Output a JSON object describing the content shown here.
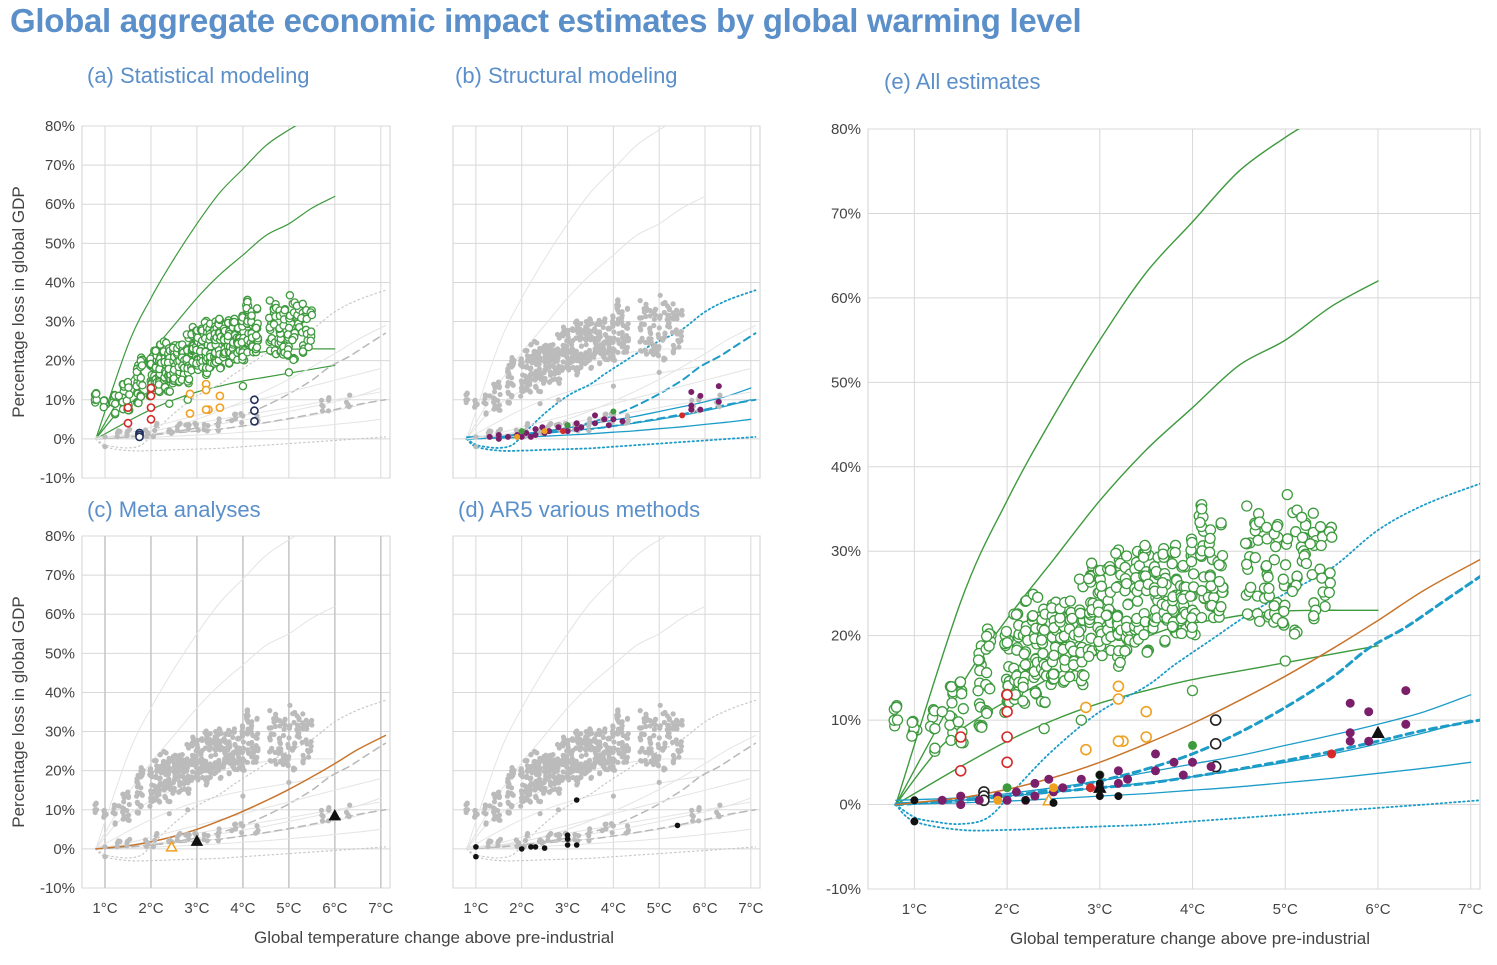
{
  "title": "Global aggregate economic impact estimates by global warming level",
  "chart_data": [
    {
      "panel": "a",
      "type": "scatter",
      "title": "(a) Statistical modeling",
      "ylabel": "Percentage loss in global GDP",
      "ylim": [
        -10,
        80
      ],
      "xlim": [
        0.5,
        7.2
      ],
      "y_ticks": [
        "-10%",
        "0%",
        "10%",
        "20%",
        "30%",
        "40%",
        "50%",
        "60%",
        "70%",
        "80%"
      ],
      "highlight": "statistical",
      "grid": true
    },
    {
      "panel": "b",
      "type": "scatter",
      "title": "(b) Structural modeling",
      "ylim": [
        -10,
        80
      ],
      "xlim": [
        0.5,
        7.2
      ],
      "highlight": "structural",
      "grid": true
    },
    {
      "panel": "c",
      "type": "scatter",
      "title": "(c) Meta analyses",
      "ylabel": "Percentage loss in global GDP",
      "ylim": [
        -10,
        80
      ],
      "xlim": [
        0.5,
        7.2
      ],
      "y_ticks": [
        "-10%",
        "0%",
        "10%",
        "20%",
        "30%",
        "40%",
        "50%",
        "60%",
        "70%",
        "80%"
      ],
      "x_ticks": [
        "1°C",
        "2°C",
        "3°C",
        "4°C",
        "5°C",
        "6°C",
        "7°C"
      ],
      "highlight": "meta",
      "grid": true
    },
    {
      "panel": "d",
      "type": "scatter",
      "title": "(d) AR5 various methods",
      "ylim": [
        -10,
        80
      ],
      "xlim": [
        0.5,
        7.2
      ],
      "x_ticks": [
        "1°C",
        "2°C",
        "3°C",
        "4°C",
        "5°C",
        "6°C",
        "7°C"
      ],
      "highlight": "ar5",
      "grid": true
    },
    {
      "panel": "e",
      "type": "scatter",
      "title": "(e) All estimates",
      "ylim": [
        -10,
        80
      ],
      "xlim": [
        0.5,
        7.1
      ],
      "y_ticks": [
        "-10%",
        "0%",
        "10%",
        "20%",
        "30%",
        "40%",
        "50%",
        "60%",
        "70%",
        "80%"
      ],
      "x_ticks": [
        "1°C",
        "2°C",
        "3°C",
        "4°C",
        "5°C",
        "6°C",
        "7°C"
      ],
      "highlight": "all",
      "grid": true
    }
  ],
  "xlabel": "Global temperature change above pre-industrial",
  "curves": {
    "statistical": [
      {
        "x": [
          0.8,
          1.5,
          2,
          2.5,
          3,
          3.5,
          4,
          4.5,
          5,
          5.3
        ],
        "y": [
          0,
          24,
          36,
          46,
          55,
          63,
          69,
          75,
          79,
          81
        ]
      },
      {
        "x": [
          0.8,
          1.5,
          2,
          2.5,
          3,
          3.5,
          4,
          4.5,
          5,
          5.5,
          6
        ],
        "y": [
          0,
          14,
          22,
          29,
          36,
          42,
          47,
          52,
          55,
          59,
          62
        ]
      },
      {
        "x": [
          0.8,
          1.3,
          1.8,
          2.3,
          2.8,
          3.3,
          3.8,
          4.3,
          4.8,
          5.3,
          5.6,
          6
        ],
        "y": [
          0,
          7,
          11,
          14,
          17,
          19,
          21,
          22,
          22.8,
          23,
          23,
          23
        ]
      },
      {
        "x": [
          0.8,
          1.5,
          2,
          2.5,
          3,
          3.5,
          4,
          4.5,
          5,
          5.5,
          6
        ],
        "y": [
          0,
          4.5,
          7.5,
          10,
          12,
          13.5,
          14.8,
          15.8,
          16.8,
          17.8,
          18.8
        ]
      }
    ],
    "structural": [
      {
        "x": [
          0.8,
          1.5,
          2,
          2.5,
          3,
          3.5,
          4,
          4.5,
          5,
          5.5,
          6,
          6.5,
          7
        ],
        "y": [
          0.5,
          0.8,
          1.3,
          2,
          2.8,
          3.8,
          4.8,
          5.8,
          7,
          8.2,
          9.5,
          11,
          13
        ]
      },
      {
        "x": [
          0.8,
          1.5,
          2,
          2.5,
          3,
          3.5,
          4,
          4.5,
          5,
          5.5,
          6,
          6.5,
          7
        ],
        "y": [
          0.2,
          0.5,
          1,
          1.5,
          2,
          2.6,
          3.3,
          4.1,
          5,
          6,
          7.2,
          8.5,
          10
        ]
      },
      {
        "x": [
          0.8,
          1.5,
          2,
          2.5,
          3,
          3.5,
          4,
          4.5,
          5,
          5.5,
          6,
          6.5,
          7
        ],
        "y": [
          0,
          0.2,
          0.4,
          0.7,
          1,
          1.3,
          1.7,
          2.1,
          2.6,
          3.1,
          3.7,
          4.3,
          5
        ]
      }
    ],
    "structural_dashed": [
      {
        "x": [
          0.8,
          1.5,
          2,
          2.5,
          3,
          3.5,
          4,
          4.5,
          5,
          5.5,
          5.9,
          6.3,
          6.7,
          7.1
        ],
        "y": [
          0,
          0.5,
          1,
          1.8,
          2.8,
          4.2,
          6,
          8.5,
          11.5,
          15,
          18.5,
          21,
          24,
          27
        ]
      },
      {
        "x": [
          0.8,
          1.5,
          2,
          2.5,
          3,
          3.5,
          4,
          4.5,
          5,
          5.5,
          6,
          6.5,
          7.1
        ],
        "y": [
          0,
          0.5,
          1,
          1.5,
          2,
          2.5,
          3.3,
          4.2,
          5.2,
          6.3,
          7.5,
          8.8,
          10
        ]
      }
    ],
    "structural_dotted": [
      {
        "x": [
          0.8,
          1.0,
          1.2,
          1.5,
          1.8,
          2.1,
          2.5,
          3,
          3.5,
          3.8,
          4.2,
          4.6,
          5,
          5.5,
          6,
          6.5,
          7.1
        ],
        "y": [
          0,
          -1.5,
          -2,
          -2.3,
          -1.5,
          2,
          6.5,
          11,
          14,
          16.5,
          19.5,
          22.5,
          25,
          28,
          32.5,
          35.5,
          38
        ]
      },
      {
        "x": [
          0.8,
          1.0,
          1.5,
          2,
          2.5,
          3,
          3.5,
          4,
          4.5,
          5,
          5.5,
          6,
          6.5,
          7.1
        ],
        "y": [
          0,
          -2,
          -3,
          -3,
          -2.8,
          -2.6,
          -2.4,
          -2.0,
          -1.6,
          -1.2,
          -0.8,
          -0.4,
          0,
          0.5
        ]
      }
    ],
    "meta": [
      {
        "x": [
          0.8,
          1.5,
          2,
          2.5,
          3,
          3.5,
          4,
          4.5,
          5,
          5.5,
          6,
          6.5,
          7.1
        ],
        "y": [
          0,
          0.8,
          1.8,
          3.2,
          5,
          7.2,
          9.6,
          12.3,
          15.2,
          18.4,
          21.8,
          25.4,
          29
        ]
      }
    ],
    "background_light": [
      {
        "x": [
          0.8,
          1.5,
          2,
          3,
          4,
          5,
          6,
          7
        ],
        "y": [
          0,
          1.5,
          3,
          6,
          9,
          12,
          15,
          18
        ]
      },
      {
        "x": [
          0.8,
          1.5,
          2,
          3,
          4,
          5,
          6,
          7
        ],
        "y": [
          0,
          1,
          2,
          4,
          6,
          8,
          10,
          12
        ]
      }
    ]
  },
  "points": {
    "green_open": "Statistical modeling estimates (green open circles)",
    "red_open": [
      [
        1.5,
        8
      ],
      [
        1.5,
        4
      ],
      [
        2,
        13
      ],
      [
        2,
        11
      ],
      [
        2,
        8
      ],
      [
        2,
        5
      ]
    ],
    "orange_open": [
      [
        2.85,
        11.5
      ],
      [
        3.2,
        14
      ],
      [
        3.2,
        12.5
      ],
      [
        3.25,
        7.5
      ],
      [
        2.85,
        6.5
      ],
      [
        3.5,
        11
      ],
      [
        3.5,
        8
      ],
      [
        3.2,
        7.5
      ]
    ],
    "navy_open": [
      [
        1.75,
        1.5
      ],
      [
        1.75,
        1
      ],
      [
        1.75,
        0.5
      ],
      [
        4.25,
        10
      ],
      [
        4.25,
        7.2
      ],
      [
        4.25,
        4.5
      ]
    ],
    "purple": [
      [
        1.3,
        0.5
      ],
      [
        1.5,
        1
      ],
      [
        1.5,
        0
      ],
      [
        1.7,
        0.5
      ],
      [
        1.9,
        1
      ],
      [
        2.0,
        0.5
      ],
      [
        2.1,
        1.5
      ],
      [
        2.2,
        0.5
      ],
      [
        2.3,
        2.5
      ],
      [
        2.3,
        1
      ],
      [
        2.45,
        3
      ],
      [
        2.5,
        1.5
      ],
      [
        2.6,
        2
      ],
      [
        2.8,
        3
      ],
      [
        3.0,
        3.5
      ],
      [
        3.0,
        2
      ],
      [
        3.2,
        4
      ],
      [
        3.2,
        2.5
      ],
      [
        3.3,
        3
      ],
      [
        3.6,
        6
      ],
      [
        3.6,
        4
      ],
      [
        3.8,
        5
      ],
      [
        3.9,
        3.5
      ],
      [
        4.0,
        5
      ],
      [
        4.2,
        4.5
      ],
      [
        5.7,
        12
      ],
      [
        5.7,
        8.5
      ],
      [
        5.9,
        11
      ],
      [
        5.9,
        7.5
      ],
      [
        6.3,
        13.5
      ],
      [
        6.3,
        9.5
      ],
      [
        5.7,
        7.5
      ]
    ],
    "green_solid": [
      [
        2.0,
        2
      ],
      [
        3.0,
        3.5
      ],
      [
        4.0,
        7
      ]
    ],
    "orange_solid": [
      [
        1.9,
        0.5
      ],
      [
        2.5,
        2
      ]
    ],
    "red_solid": [
      [
        2.9,
        2
      ],
      [
        5.5,
        6
      ]
    ],
    "black_solid": [
      [
        1.0,
        0.5
      ],
      [
        1.0,
        -2
      ],
      [
        2.2,
        0.5
      ],
      [
        2.5,
        0.2
      ],
      [
        3.0,
        1
      ],
      [
        3.0,
        2.5
      ],
      [
        3.0,
        3.5
      ],
      [
        3.2,
        1
      ]
    ],
    "black_triangle": [
      [
        3.0,
        2
      ],
      [
        6.0,
        8.5
      ]
    ],
    "orange_triangle": [
      [
        2.45,
        0.5
      ]
    ],
    "grey": "Other estimates shown in grey"
  },
  "colors": {
    "green": "#3e9a3e",
    "red": "#d42a2a",
    "orange": "#f0a020",
    "navy": "#1f2f5a",
    "purple": "#7b1f6a",
    "blue": "#1d9cc8",
    "brown": "#c8742a",
    "grey": "#bbbbbb",
    "grey_light": "#e4e4e4",
    "title_blue": "#5b8fc9"
  }
}
